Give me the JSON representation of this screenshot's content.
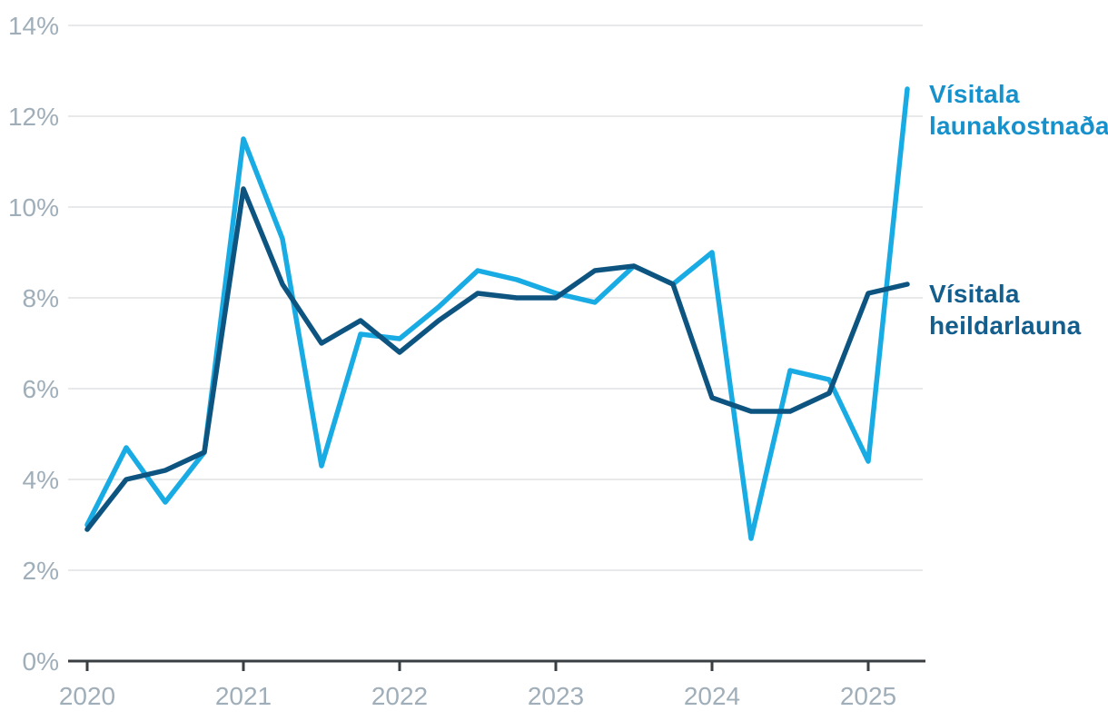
{
  "chart_data": {
    "type": "line",
    "title": "",
    "xlabel": "",
    "ylabel": "",
    "grid": "horizontal",
    "legend_position": "right-annotations",
    "ylim": [
      0,
      14
    ],
    "y_step": 2,
    "y_tick_labels": [
      "0%",
      "2%",
      "4%",
      "6%",
      "8%",
      "10%",
      "12%",
      "14%"
    ],
    "x_tick_labels": [
      "2020",
      "2021",
      "2022",
      "2023",
      "2024",
      "2025"
    ],
    "x": [
      "2020 Q1",
      "2020 Q2",
      "2020 Q3",
      "2020 Q4",
      "2021 Q1",
      "2021 Q2",
      "2021 Q3",
      "2021 Q4",
      "2022 Q1",
      "2022 Q2",
      "2022 Q3",
      "2022 Q4",
      "2023 Q1",
      "2023 Q2",
      "2023 Q3",
      "2023 Q4",
      "2024 Q1",
      "2024 Q2",
      "2024 Q3",
      "2024 Q4",
      "2025 Q1",
      "2025 Q2"
    ],
    "unit": "%",
    "series": [
      {
        "name": "Vísitala launakostnaðar",
        "color": "#19ACE4",
        "label_color": "#1791CB",
        "values": [
          3.0,
          4.7,
          3.5,
          4.6,
          11.5,
          9.3,
          4.3,
          7.2,
          7.1,
          7.8,
          8.6,
          8.4,
          8.1,
          7.9,
          8.7,
          8.3,
          9.0,
          2.7,
          6.4,
          6.2,
          4.4,
          12.6
        ]
      },
      {
        "name": "Vísitala heildarlauna",
        "color": "#0D5580",
        "label_color": "#135E8C",
        "values": [
          2.9,
          4.0,
          4.2,
          4.6,
          10.4,
          8.3,
          7.0,
          7.5,
          6.8,
          7.5,
          8.1,
          8.0,
          8.0,
          8.6,
          8.7,
          8.3,
          5.8,
          5.5,
          5.5,
          5.9,
          8.1,
          8.3
        ]
      }
    ],
    "axis_color": "#383E42",
    "grid_color": "#E7E9EA",
    "tick_label_color": "#9FAEB9"
  },
  "labels": {
    "launakostnadar": "Vísitala\nlaunakostnaðar",
    "heildarlauna": "Vísitala\nheildarlauna"
  }
}
